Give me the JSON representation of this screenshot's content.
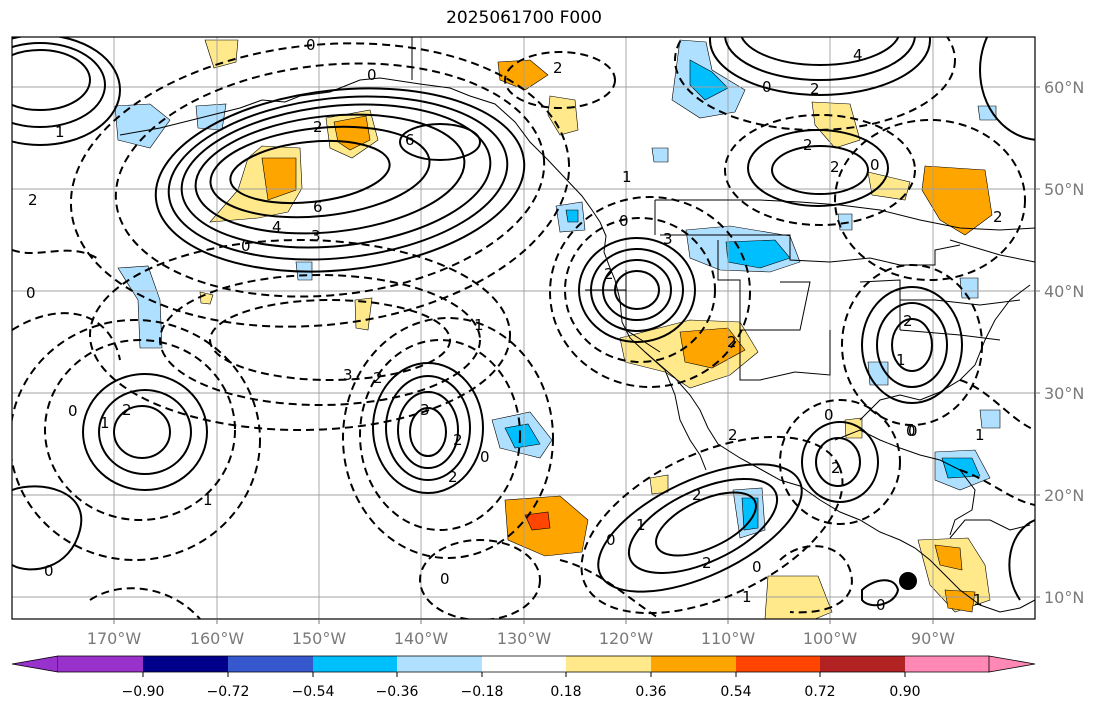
{
  "title": "2025061700 F000",
  "map": {
    "lon_labels": [
      "170°W",
      "160°W",
      "150°W",
      "140°W",
      "130°W",
      "120°W",
      "110°W",
      "100°W",
      "90°W"
    ],
    "lat_labels": [
      "60°N",
      "50°N",
      "40°N",
      "30°N",
      "20°N",
      "10°N"
    ],
    "contour_labels": [
      "0",
      "4",
      "2",
      "6",
      "6",
      "4",
      "2",
      "3",
      "0",
      "0",
      "2",
      "2",
      "0",
      "2",
      "1",
      "0",
      "3",
      "2",
      "0",
      "1",
      "3",
      "2",
      "0",
      "2",
      "2",
      "0",
      "1",
      "2",
      "0",
      "2",
      "1",
      "0",
      "2",
      "0",
      "0",
      "1",
      "2",
      "0",
      "0",
      "2",
      "1",
      "1",
      "2",
      "2",
      "2",
      "0",
      "1",
      "0",
      "2",
      "3",
      "1",
      "0",
      "1"
    ]
  },
  "colorbar": {
    "tick_labels": [
      "−0.90",
      "−0.72",
      "−0.54",
      "−0.36",
      "−0.18",
      "0.18",
      "0.36",
      "0.54",
      "0.72",
      "0.90"
    ],
    "colors": [
      "#9932cc",
      "#00008b",
      "#3558cf",
      "#00bfff",
      "#b0e0ff",
      "#ffffff",
      "#ffe98a",
      "#ffa500",
      "#ff4500",
      "#b22222",
      "#ff89b4"
    ]
  },
  "colors": {
    "axis": "#000000",
    "grid": "#a0a0a0",
    "coast": "#000000",
    "tick_text": "#7a7a7a"
  }
}
